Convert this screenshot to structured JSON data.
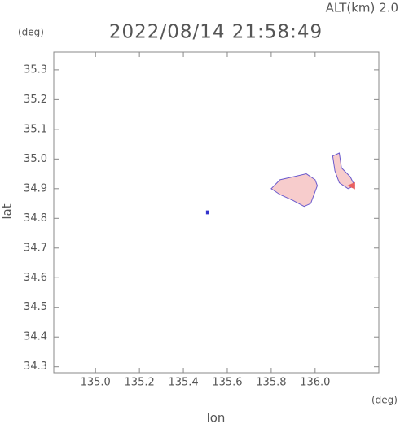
{
  "chart_data": {
    "type": "map",
    "title": "2022/08/14 21:58:49",
    "subtitle": "ALT(km) 2.0",
    "y_unit": "(deg)",
    "x_unit": "(deg)",
    "ylabel": "lat",
    "xlabel": "lon",
    "xlim": [
      134.81,
      136.29
    ],
    "ylim": [
      34.28,
      35.36
    ],
    "xticks": [
      {
        "value": 135.0,
        "label": "135.0"
      },
      135.2,
      135.4,
      135.6,
      135.8,
      {
        "value": 136.0,
        "label": "136.0"
      }
    ],
    "yticks": [
      34.3,
      34.4,
      34.5,
      34.6,
      34.7,
      34.8,
      34.9,
      {
        "value": 35.0,
        "label": "35.0"
      },
      35.1,
      35.2,
      35.3
    ],
    "regions": [
      {
        "color": "#f7cccc",
        "edge": "#6a5acd",
        "x": [
          135.8,
          135.84,
          135.9,
          135.96,
          136.0,
          136.01,
          135.98,
          135.95,
          135.9,
          135.84
        ],
        "y": [
          34.9,
          34.93,
          34.94,
          34.95,
          34.93,
          34.91,
          34.85,
          34.84,
          34.86,
          34.88
        ]
      },
      {
        "color": "#f7cccc",
        "edge": "#6a5acd",
        "x": [
          136.08,
          136.11,
          136.12,
          136.16,
          136.18,
          136.15,
          136.11,
          136.09
        ],
        "y": [
          35.01,
          35.02,
          34.97,
          34.94,
          34.91,
          34.9,
          34.92,
          34.96
        ]
      },
      {
        "color": "#e86060",
        "edge": "#e86060",
        "x": [
          136.15,
          136.18,
          136.18
        ],
        "y": [
          34.91,
          34.92,
          34.9
        ]
      },
      {
        "color": "#3333cc",
        "edge": "#3333cc",
        "x": [
          135.505,
          135.515,
          135.515,
          135.505
        ],
        "y": [
          34.825,
          34.825,
          34.815,
          34.815
        ]
      }
    ]
  }
}
